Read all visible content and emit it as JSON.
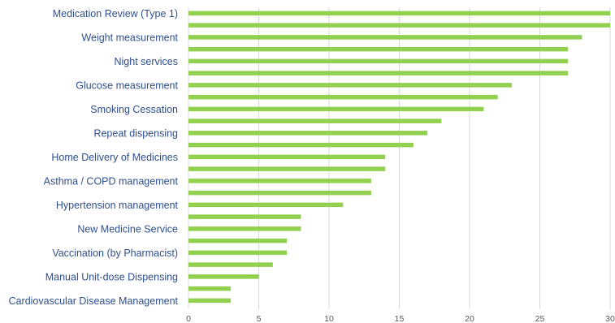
{
  "chart_data": {
    "type": "bar",
    "orientation": "horizontal",
    "title": "",
    "xlabel": "",
    "ylabel": "",
    "xlim": [
      0,
      30
    ],
    "xticks": [
      0,
      5,
      10,
      15,
      20,
      25,
      30
    ],
    "grid": true,
    "bar_color": "#92d050",
    "label_color": "#2f4f8f",
    "bars": [
      30,
      30,
      28,
      27,
      27,
      27,
      23,
      22,
      21,
      18,
      17,
      16,
      14,
      14,
      13,
      13,
      11,
      8,
      8,
      7,
      7,
      6,
      5,
      3,
      3
    ],
    "labels": [
      {
        "bar_index": 0,
        "text": "Medication Review (Type 1)"
      },
      {
        "bar_index": 2,
        "text": "Weight measurement"
      },
      {
        "bar_index": 4,
        "text": "Night services"
      },
      {
        "bar_index": 6,
        "text": "Glucose measurement"
      },
      {
        "bar_index": 8,
        "text": "Smoking Cessation"
      },
      {
        "bar_index": 10,
        "text": "Repeat dispensing"
      },
      {
        "bar_index": 12,
        "text": "Home Delivery of Medicines"
      },
      {
        "bar_index": 14,
        "text": "Asthma / COPD management"
      },
      {
        "bar_index": 16,
        "text": "Hypertension management"
      },
      {
        "bar_index": 18,
        "text": "New Medicine Service"
      },
      {
        "bar_index": 20,
        "text": "Vaccination (by Pharmacist)"
      },
      {
        "bar_index": 22,
        "text": "Manual Unit-dose Dispensing"
      },
      {
        "bar_index": 24,
        "text": "Cardiovascular Disease Management"
      }
    ]
  }
}
